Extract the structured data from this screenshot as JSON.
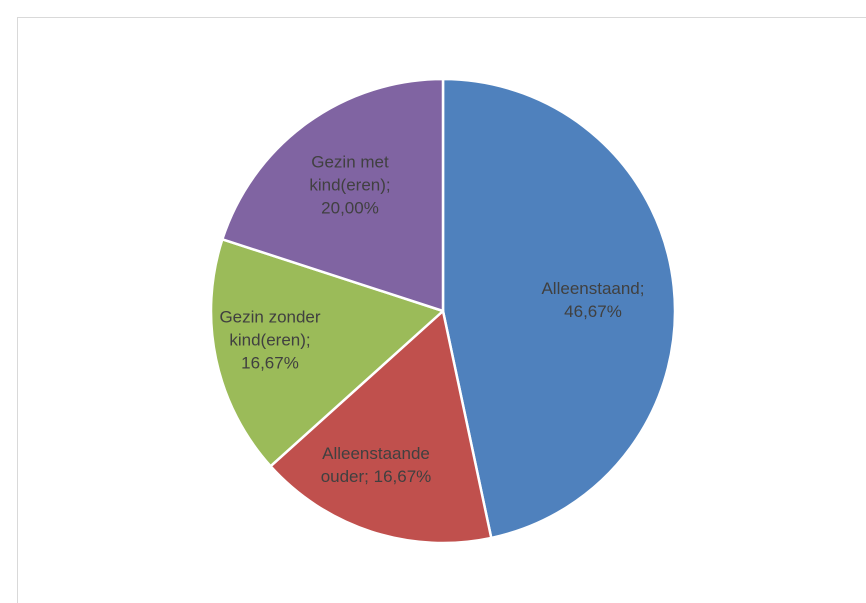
{
  "chart_data": {
    "type": "pie",
    "categories": [
      "Alleenstaand",
      "Alleenstaande ouder",
      "Gezin zonder kind(eren)",
      "Gezin met kind(eren)"
    ],
    "values": [
      46.67,
      16.67,
      16.67,
      20.0
    ],
    "value_labels": [
      "46,67%",
      "16,67%",
      "16,67%",
      "20,00%"
    ],
    "label_separator": ";",
    "colors": [
      "#4f81bd",
      "#c0504d",
      "#9bbb59",
      "#8064a2"
    ]
  }
}
